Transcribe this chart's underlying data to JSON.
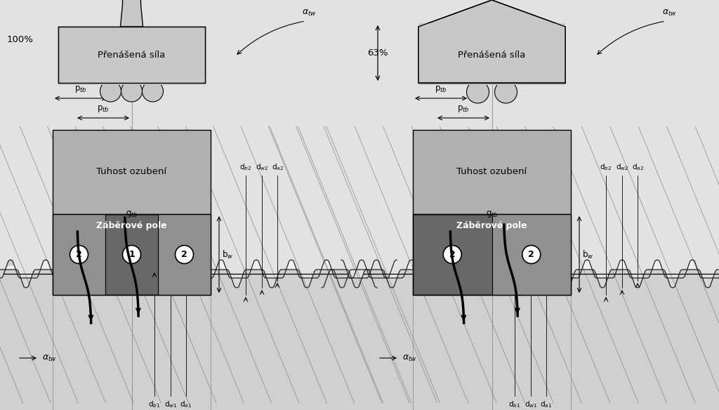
{
  "bg_color": "#ffffff",
  "gray_light": "#c8c8c8",
  "gray_mid": "#aaaaaa",
  "gray_dark": "#787878",
  "gray_darker": "#555555",
  "gray_band": "#c0c0c0",
  "gray_zaberove_dark": "#686868",
  "gray_zaberove_light": "#909090",
  "black": "#000000",
  "white": "#ffffff",
  "left_percent": "100%",
  "right_percent": "63%",
  "label_prenasena": "Přenášená síla",
  "label_tuhost": "Tuhost ozubení",
  "label_zaberove": "Záběrové pole"
}
